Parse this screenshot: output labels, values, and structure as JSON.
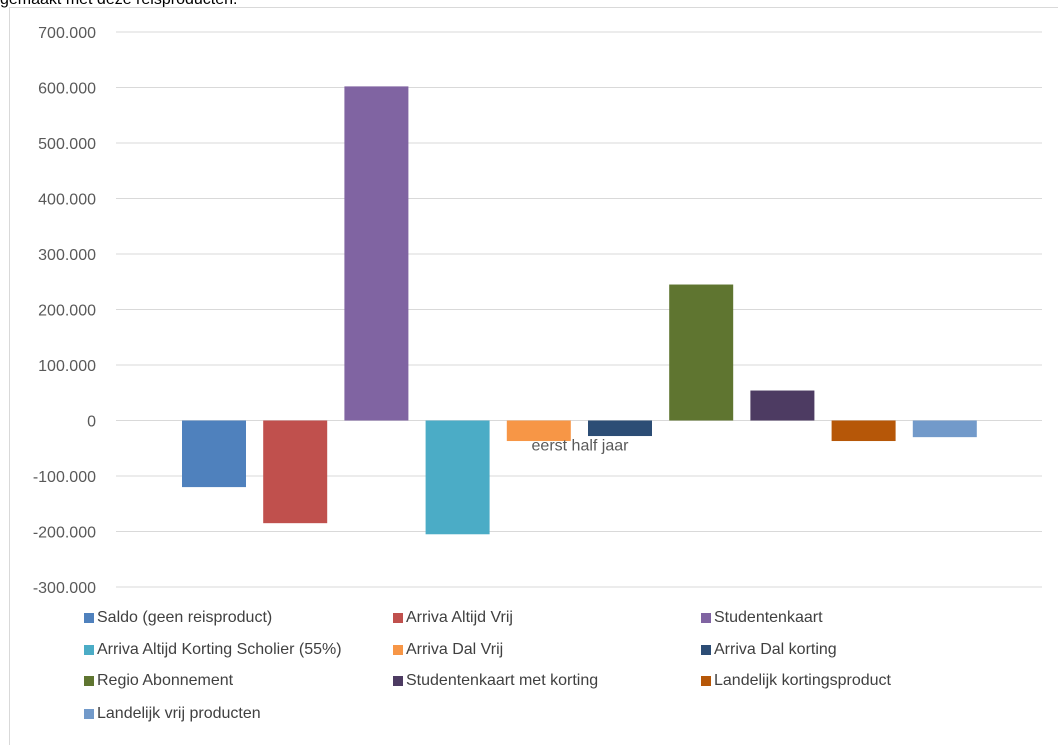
{
  "caption": "gemaakt met deze reisproducten.",
  "chart_data": {
    "type": "bar",
    "categories": [
      "eerst half jaar"
    ],
    "ylim": [
      -300000,
      700000
    ],
    "yticks": [
      700000,
      600000,
      500000,
      400000,
      300000,
      200000,
      100000,
      0,
      -100000,
      -200000,
      -300000
    ],
    "ytick_labels": [
      "700.000",
      "600.000",
      "500.000",
      "400.000",
      "300.000",
      "200.000",
      "100.000",
      "0",
      "-100.000",
      "-200.000",
      "-300.000"
    ],
    "grid": true,
    "legend_position": "bottom",
    "series": [
      {
        "name": "Saldo (geen reisproduct)",
        "values": [
          -120000
        ],
        "color": "#4f81bd"
      },
      {
        "name": "Arriva Altijd Vrij",
        "values": [
          -185000
        ],
        "color": "#c0504d"
      },
      {
        "name": "Studentenkaart",
        "values": [
          602000
        ],
        "color": "#8064a2"
      },
      {
        "name": "Arriva Altijd Korting Scholier (55%)",
        "values": [
          -205000
        ],
        "color": "#4bacc6"
      },
      {
        "name": "Arriva Dal Vrij",
        "values": [
          -37000
        ],
        "color": "#f79646"
      },
      {
        "name": "Arriva Dal korting",
        "values": [
          -28000
        ],
        "color": "#2c4d75"
      },
      {
        "name": "Regio Abonnement",
        "values": [
          245000
        ],
        "color": "#5f7530"
      },
      {
        "name": "Studentenkaart met korting",
        "values": [
          54000
        ],
        "color": "#4d3b62"
      },
      {
        "name": "Landelijk kortingsproduct",
        "values": [
          -37000
        ],
        "color": "#b65708"
      },
      {
        "name": "Landelijk vrij producten",
        "values": [
          -30000
        ],
        "color": "#729aca"
      }
    ]
  }
}
